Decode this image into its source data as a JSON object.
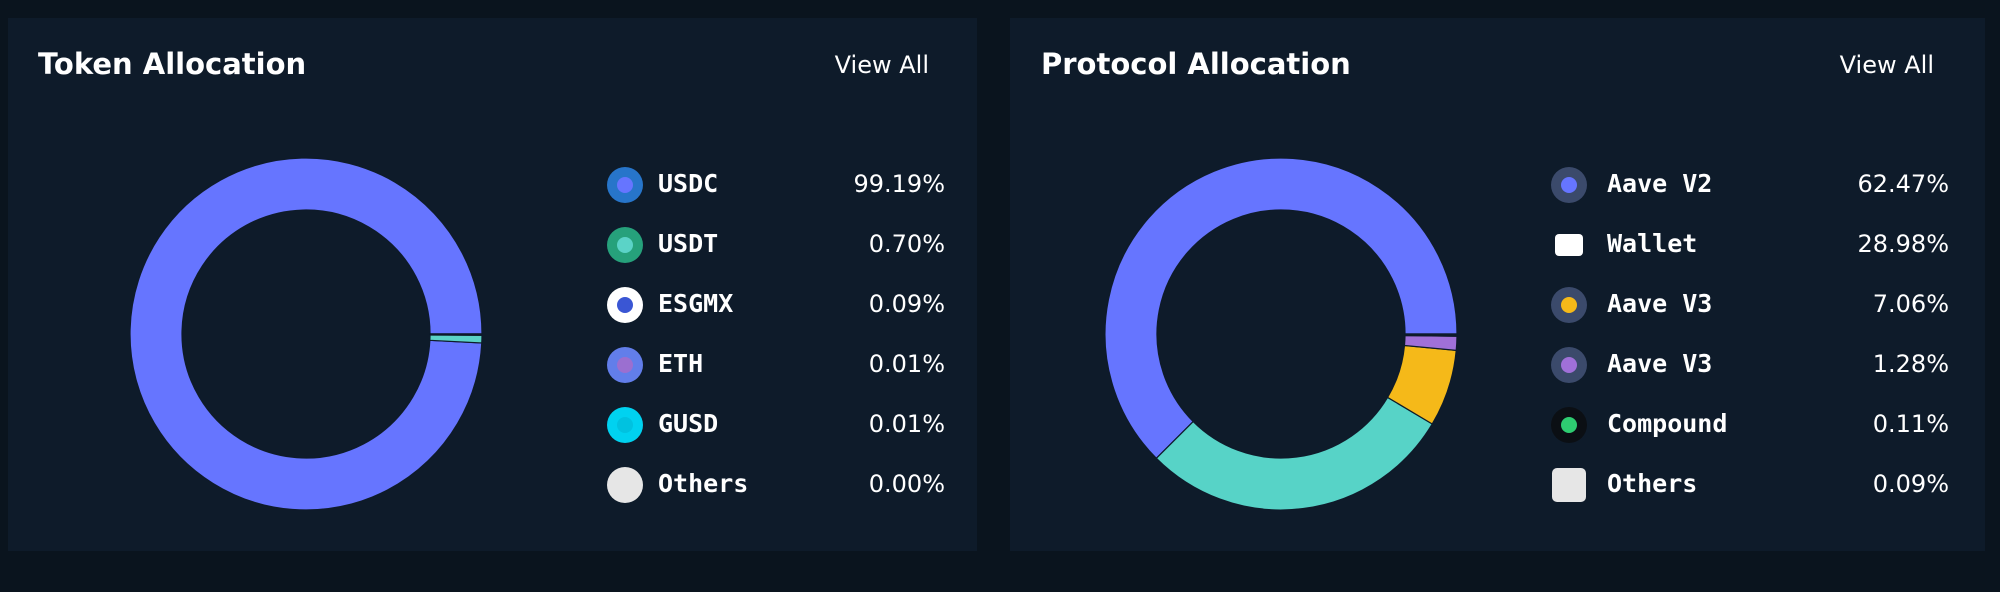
{
  "chart_data": [
    {
      "type": "pie",
      "donut": true,
      "title": "Token Allocation",
      "action": "View All",
      "categories": [
        "USDC",
        "USDT",
        "ESGMX",
        "ETH",
        "GUSD",
        "Others"
      ],
      "values": [
        99.19,
        0.7,
        0.09,
        0.01,
        0.01,
        0.0
      ],
      "value_labels": [
        "99.19%",
        "0.70%",
        "0.09%",
        "0.01%",
        "0.01%",
        "0.00%"
      ],
      "colors": [
        "#6675ff",
        "#5bd3c7",
        "#3a56d4",
        "#9b6fd0",
        "#00c2e0",
        "#e6e6e6"
      ]
    },
    {
      "type": "pie",
      "donut": true,
      "title": "Protocol Allocation",
      "action": "View All",
      "categories": [
        "Aave V2",
        "Wallet",
        "Aave V3",
        "Aave V3",
        "Compound",
        "Others"
      ],
      "values": [
        62.47,
        28.98,
        7.06,
        1.28,
        0.11,
        0.09
      ],
      "value_labels": [
        "62.47%",
        "28.98%",
        "7.06%",
        "1.28%",
        "0.11%",
        "0.09%"
      ],
      "colors": [
        "#6675ff",
        "#57d3c7",
        "#f5b919",
        "#a070d8",
        "#2ecc71",
        "#e6e6e6"
      ]
    }
  ]
}
